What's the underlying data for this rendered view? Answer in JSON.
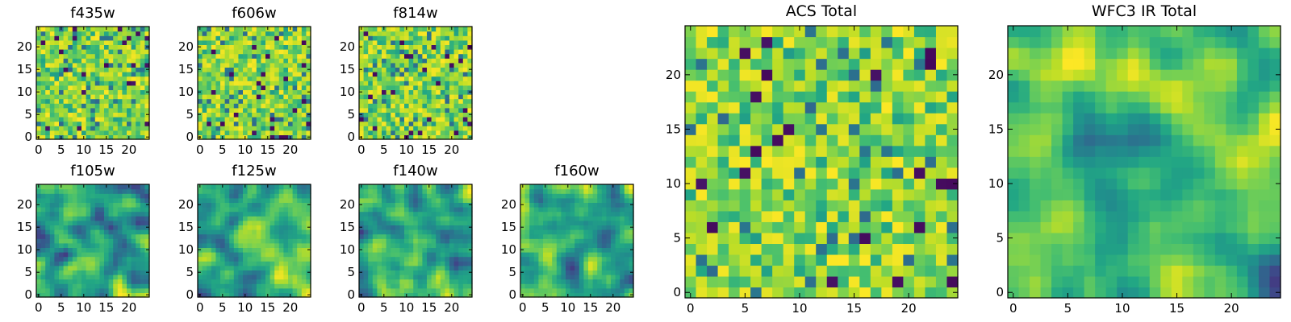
{
  "chart_data": [
    {
      "type": "heatmap",
      "title": "f435w",
      "colormap": "viridis",
      "grid": 25,
      "xlim": [
        -0.5,
        24.5
      ],
      "ylim": [
        -0.5,
        24.5
      ],
      "xticks": [
        0,
        5,
        10,
        15,
        20
      ],
      "yticks": [
        0,
        5,
        10,
        15,
        20
      ],
      "pattern": "noise"
    },
    {
      "type": "heatmap",
      "title": "f606w",
      "colormap": "viridis",
      "grid": 25,
      "xlim": [
        -0.5,
        24.5
      ],
      "ylim": [
        -0.5,
        24.5
      ],
      "xticks": [
        0,
        5,
        10,
        15,
        20
      ],
      "yticks": [
        0,
        5,
        10,
        15,
        20
      ],
      "pattern": "noise"
    },
    {
      "type": "heatmap",
      "title": "f814w",
      "colormap": "viridis",
      "grid": 25,
      "xlim": [
        -0.5,
        24.5
      ],
      "ylim": [
        -0.5,
        24.5
      ],
      "xticks": [
        0,
        5,
        10,
        15,
        20
      ],
      "yticks": [
        0,
        5,
        10,
        15,
        20
      ],
      "pattern": "noise"
    },
    {
      "type": "heatmap",
      "title": "f105w",
      "colormap": "viridis",
      "grid": 25,
      "xlim": [
        -0.5,
        24.5
      ],
      "ylim": [
        -0.5,
        24.5
      ],
      "xticks": [
        0,
        5,
        10,
        15,
        20
      ],
      "yticks": [
        0,
        5,
        10,
        15,
        20
      ],
      "pattern": "smooth"
    },
    {
      "type": "heatmap",
      "title": "f125w",
      "colormap": "viridis",
      "grid": 25,
      "xlim": [
        -0.5,
        24.5
      ],
      "ylim": [
        -0.5,
        24.5
      ],
      "xticks": [
        0,
        5,
        10,
        15,
        20
      ],
      "yticks": [
        0,
        5,
        10,
        15,
        20
      ],
      "pattern": "smooth"
    },
    {
      "type": "heatmap",
      "title": "f140w",
      "colormap": "viridis",
      "grid": 25,
      "xlim": [
        -0.5,
        24.5
      ],
      "ylim": [
        -0.5,
        24.5
      ],
      "xticks": [
        0,
        5,
        10,
        15,
        20
      ],
      "yticks": [
        0,
        5,
        10,
        15,
        20
      ],
      "pattern": "smooth"
    },
    {
      "type": "heatmap",
      "title": "f160w",
      "colormap": "viridis",
      "grid": 25,
      "xlim": [
        -0.5,
        24.5
      ],
      "ylim": [
        -0.5,
        24.5
      ],
      "xticks": [
        0,
        5,
        10,
        15,
        20
      ],
      "yticks": [
        0,
        5,
        10,
        15,
        20
      ],
      "pattern": "smooth"
    },
    {
      "type": "heatmap",
      "title": "ACS Total",
      "colormap": "viridis",
      "grid": 25,
      "xlim": [
        -0.5,
        24.5
      ],
      "ylim": [
        -0.5,
        24.5
      ],
      "xticks": [
        0,
        5,
        10,
        15,
        20
      ],
      "yticks": [
        0,
        5,
        10,
        15,
        20
      ],
      "pattern": "noise"
    },
    {
      "type": "heatmap",
      "title": "WFC3 IR Total",
      "colormap": "viridis",
      "grid": 25,
      "xlim": [
        -0.5,
        24.5
      ],
      "ylim": [
        -0.5,
        24.5
      ],
      "xticks": [
        0,
        5,
        10,
        15,
        20
      ],
      "yticks": [
        0,
        5,
        10,
        15,
        20
      ],
      "pattern": "smooth"
    }
  ]
}
